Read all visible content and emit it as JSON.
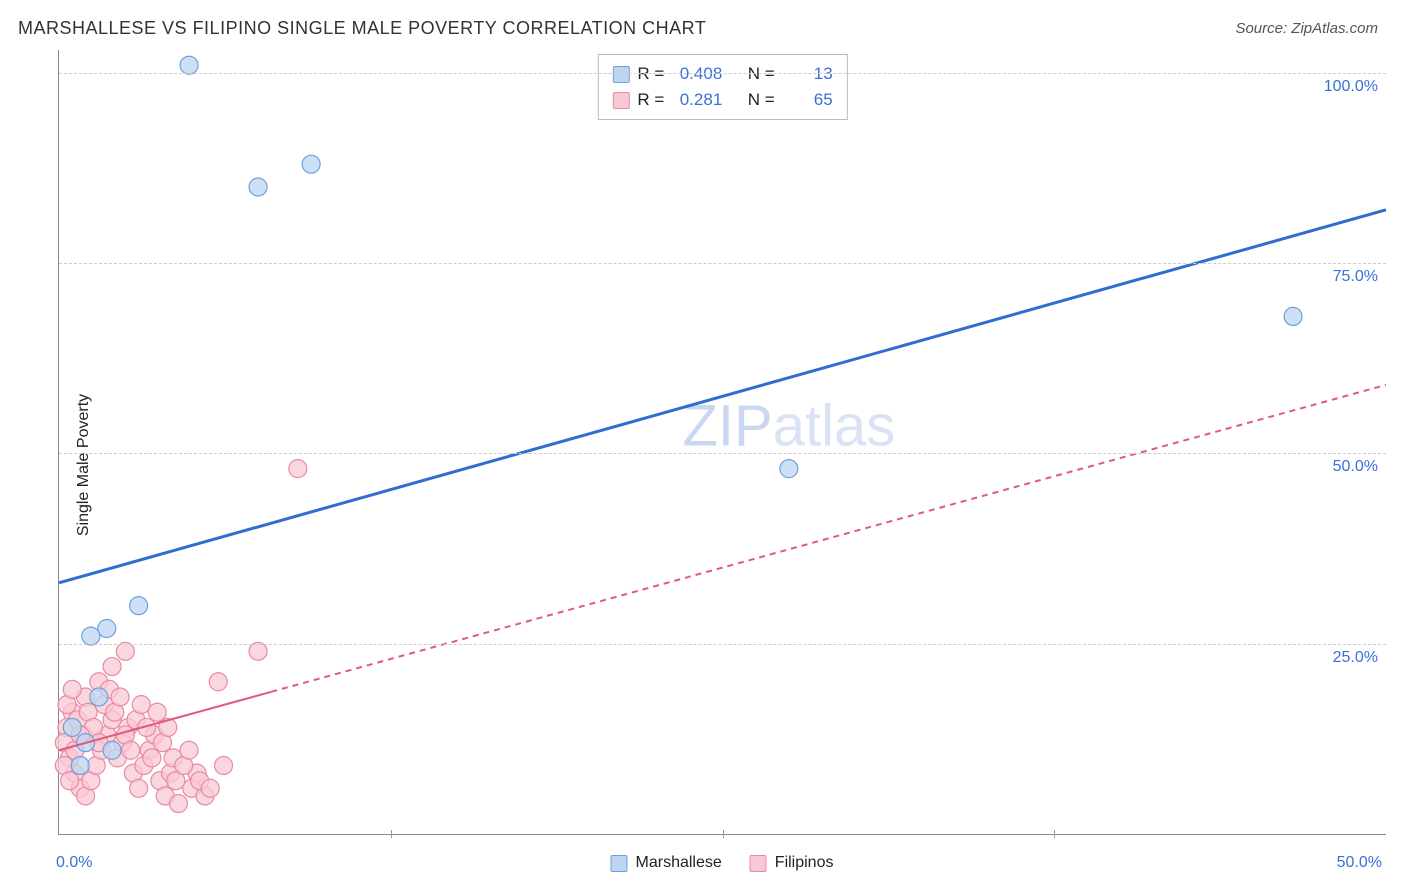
{
  "header": {
    "title": "MARSHALLESE VS FILIPINO SINGLE MALE POVERTY CORRELATION CHART",
    "source": "Source: ZipAtlas.com"
  },
  "ylabel": "Single Male Poverty",
  "watermark_main": "ZIP",
  "watermark_suffix": "atlas",
  "chart": {
    "type": "scatter",
    "xlim": [
      0,
      50
    ],
    "ylim": [
      0,
      103
    ],
    "xticks_pct": [
      0,
      50
    ],
    "xtick_labels": [
      "0.0%",
      "50.0%"
    ],
    "xminor_ticks": [
      12.5,
      25,
      37.5
    ],
    "yticks_pct": [
      25,
      50,
      75,
      100
    ],
    "ytick_labels": [
      "25.0%",
      "50.0%",
      "75.0%",
      "100.0%"
    ],
    "grid_color": "#cccccc",
    "axis_color": "#888888",
    "background_color": "#ffffff",
    "series": [
      {
        "name": "Marshallese",
        "marker_fill": "#bcd5f2",
        "marker_stroke": "#6fa0de",
        "marker_radius": 9,
        "line_color": "#2f6ed0",
        "line_width": 3,
        "line_dash": "none",
        "trend": {
          "x1": 0,
          "y1": 33,
          "x2": 50,
          "y2": 82
        },
        "R": "0.408",
        "N": "13",
        "points": [
          {
            "x": 4.9,
            "y": 101
          },
          {
            "x": 7.5,
            "y": 85
          },
          {
            "x": 9.5,
            "y": 88
          },
          {
            "x": 3.0,
            "y": 30
          },
          {
            "x": 1.8,
            "y": 27
          },
          {
            "x": 1.2,
            "y": 26
          },
          {
            "x": 27.5,
            "y": 48
          },
          {
            "x": 46.5,
            "y": 68
          },
          {
            "x": 1.0,
            "y": 12
          },
          {
            "x": 0.5,
            "y": 14
          },
          {
            "x": 2.0,
            "y": 11
          },
          {
            "x": 1.5,
            "y": 18
          },
          {
            "x": 0.8,
            "y": 9
          }
        ]
      },
      {
        "name": "Filipinos",
        "marker_fill": "#f8c8d4",
        "marker_stroke": "#e98aa4",
        "marker_radius": 9,
        "line_color": "#e05a7a",
        "line_width": 2,
        "line_dash": "6,5",
        "trend_solid_until_x": 8,
        "trend": {
          "x1": 0,
          "y1": 11,
          "x2": 50,
          "y2": 59
        },
        "R": "0.281",
        "N": "65",
        "points": [
          {
            "x": 9.0,
            "y": 48
          },
          {
            "x": 7.5,
            "y": 24
          },
          {
            "x": 6.0,
            "y": 20
          },
          {
            "x": 2.5,
            "y": 24
          },
          {
            "x": 2.0,
            "y": 22
          },
          {
            "x": 1.5,
            "y": 20
          },
          {
            "x": 1.0,
            "y": 18
          },
          {
            "x": 0.5,
            "y": 16
          },
          {
            "x": 0.3,
            "y": 14
          },
          {
            "x": 0.2,
            "y": 12
          },
          {
            "x": 0.4,
            "y": 10
          },
          {
            "x": 0.6,
            "y": 8
          },
          {
            "x": 0.8,
            "y": 6
          },
          {
            "x": 1.0,
            "y": 5
          },
          {
            "x": 1.2,
            "y": 7
          },
          {
            "x": 1.4,
            "y": 9
          },
          {
            "x": 1.6,
            "y": 11
          },
          {
            "x": 1.8,
            "y": 13
          },
          {
            "x": 2.0,
            "y": 15
          },
          {
            "x": 2.2,
            "y": 10
          },
          {
            "x": 2.4,
            "y": 12
          },
          {
            "x": 2.6,
            "y": 14
          },
          {
            "x": 2.8,
            "y": 8
          },
          {
            "x": 3.0,
            "y": 6
          },
          {
            "x": 3.2,
            "y": 9
          },
          {
            "x": 3.4,
            "y": 11
          },
          {
            "x": 3.6,
            "y": 13
          },
          {
            "x": 3.8,
            "y": 7
          },
          {
            "x": 4.0,
            "y": 5
          },
          {
            "x": 4.2,
            "y": 8
          },
          {
            "x": 4.5,
            "y": 4
          },
          {
            "x": 4.3,
            "y": 10
          },
          {
            "x": 5.0,
            "y": 6
          },
          {
            "x": 5.2,
            "y": 8
          },
          {
            "x": 5.5,
            "y": 5
          },
          {
            "x": 0.3,
            "y": 17
          },
          {
            "x": 0.5,
            "y": 19
          },
          {
            "x": 0.7,
            "y": 15
          },
          {
            "x": 0.9,
            "y": 13
          },
          {
            "x": 1.1,
            "y": 16
          },
          {
            "x": 1.3,
            "y": 14
          },
          {
            "x": 1.5,
            "y": 12
          },
          {
            "x": 1.7,
            "y": 17
          },
          {
            "x": 1.9,
            "y": 19
          },
          {
            "x": 2.1,
            "y": 16
          },
          {
            "x": 2.3,
            "y": 18
          },
          {
            "x": 2.5,
            "y": 13
          },
          {
            "x": 2.7,
            "y": 11
          },
          {
            "x": 2.9,
            "y": 15
          },
          {
            "x": 3.1,
            "y": 17
          },
          {
            "x": 3.3,
            "y": 14
          },
          {
            "x": 3.5,
            "y": 10
          },
          {
            "x": 3.7,
            "y": 16
          },
          {
            "x": 3.9,
            "y": 12
          },
          {
            "x": 4.1,
            "y": 14
          },
          {
            "x": 4.4,
            "y": 7
          },
          {
            "x": 4.7,
            "y": 9
          },
          {
            "x": 4.9,
            "y": 11
          },
          {
            "x": 5.3,
            "y": 7
          },
          {
            "x": 5.7,
            "y": 6
          },
          {
            "x": 6.2,
            "y": 9
          },
          {
            "x": 0.2,
            "y": 9
          },
          {
            "x": 0.4,
            "y": 7
          },
          {
            "x": 0.6,
            "y": 11
          },
          {
            "x": 0.8,
            "y": 13
          }
        ]
      }
    ]
  },
  "legend_bottom": [
    {
      "label": "Marshallese",
      "fill": "#bcd5f2",
      "stroke": "#6fa0de"
    },
    {
      "label": "Filipinos",
      "fill": "#f8c8d4",
      "stroke": "#e98aa4"
    }
  ],
  "legend_top_labels": {
    "R": "R =",
    "N": "N ="
  }
}
